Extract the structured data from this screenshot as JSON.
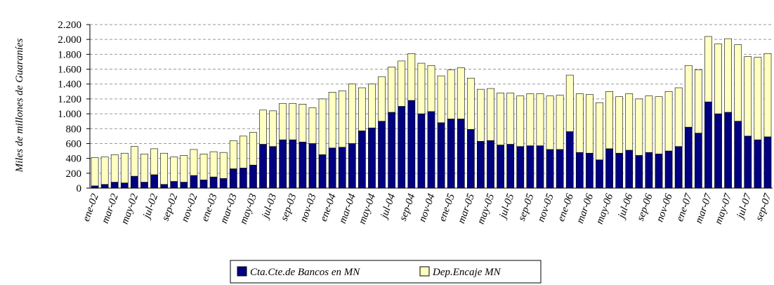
{
  "chart_data": {
    "type": "stacked_bar",
    "y_label": "Miles de millones de Guaraníes",
    "categories": [
      "ene-02",
      null,
      "mar-02",
      null,
      "may-02",
      null,
      "jul-02",
      null,
      "sep-02",
      null,
      "nov-02",
      null,
      "ene-03",
      null,
      "mar-03",
      null,
      "may-03",
      null,
      "jul-03",
      null,
      "sep-03",
      null,
      "nov-03",
      null,
      "ene-04",
      null,
      "mar-04",
      null,
      "may-04",
      null,
      "jul-04",
      null,
      "sep-04",
      null,
      "nov-04",
      null,
      "ene-05",
      null,
      "mar-05",
      null,
      "may-05",
      null,
      "jul-05",
      null,
      "sep-05",
      null,
      "nov-05",
      null,
      "ene-06",
      null,
      "mar-06",
      null,
      "may-06",
      null,
      "jul-06",
      null,
      "sep-06",
      null,
      "nov-06",
      null,
      "ene-07",
      null,
      "mar-07",
      null,
      "may-07",
      null,
      "jul-07",
      null,
      "sep-07"
    ],
    "series": [
      {
        "name": "Cta.Cte.de Bancos en MN",
        "color": "#000080",
        "values": [
          30,
          50,
          80,
          70,
          160,
          80,
          180,
          50,
          90,
          80,
          170,
          110,
          150,
          130,
          260,
          270,
          310,
          590,
          560,
          650,
          650,
          620,
          600,
          450,
          540,
          550,
          600,
          770,
          810,
          900,
          1020,
          1100,
          1180,
          1000,
          1030,
          880,
          930,
          930,
          790,
          630,
          640,
          580,
          590,
          560,
          570,
          570,
          520,
          520,
          760,
          480,
          470,
          380,
          530,
          470,
          510,
          440,
          480,
          460,
          500,
          560,
          820,
          740,
          1160,
          1000,
          1020,
          900,
          700,
          650,
          690
        ]
      },
      {
        "name": "Dep.Encaje MN",
        "color": "#ffffc0",
        "values": [
          380,
          370,
          370,
          400,
          400,
          380,
          350,
          420,
          330,
          360,
          350,
          350,
          340,
          350,
          380,
          430,
          440,
          460,
          480,
          490,
          490,
          510,
          480,
          750,
          750,
          760,
          800,
          580,
          590,
          600,
          610,
          610,
          630,
          680,
          620,
          630,
          660,
          690,
          690,
          700,
          700,
          700,
          690,
          680,
          700,
          700,
          720,
          730,
          760,
          790,
          790,
          770,
          770,
          760,
          760,
          760,
          760,
          770,
          800,
          790,
          830,
          850,
          880,
          940,
          990,
          1030,
          1070,
          1110,
          1120
        ]
      }
    ],
    "ylim": [
      0,
      2200
    ],
    "yticks": [
      0,
      200,
      400,
      600,
      800,
      {
        "value": 1000,
        "label": "1.000"
      },
      {
        "value": 1200,
        "label": "1.200"
      },
      {
        "value": 1400,
        "label": "1.400"
      },
      {
        "value": 1600,
        "label": "1.600"
      },
      {
        "value": 1800,
        "label": "1.800"
      },
      {
        "value": 2000,
        "label": "2.000"
      },
      {
        "value": 2200,
        "label": "2.200"
      }
    ],
    "grid": true,
    "legend": "bottom"
  }
}
